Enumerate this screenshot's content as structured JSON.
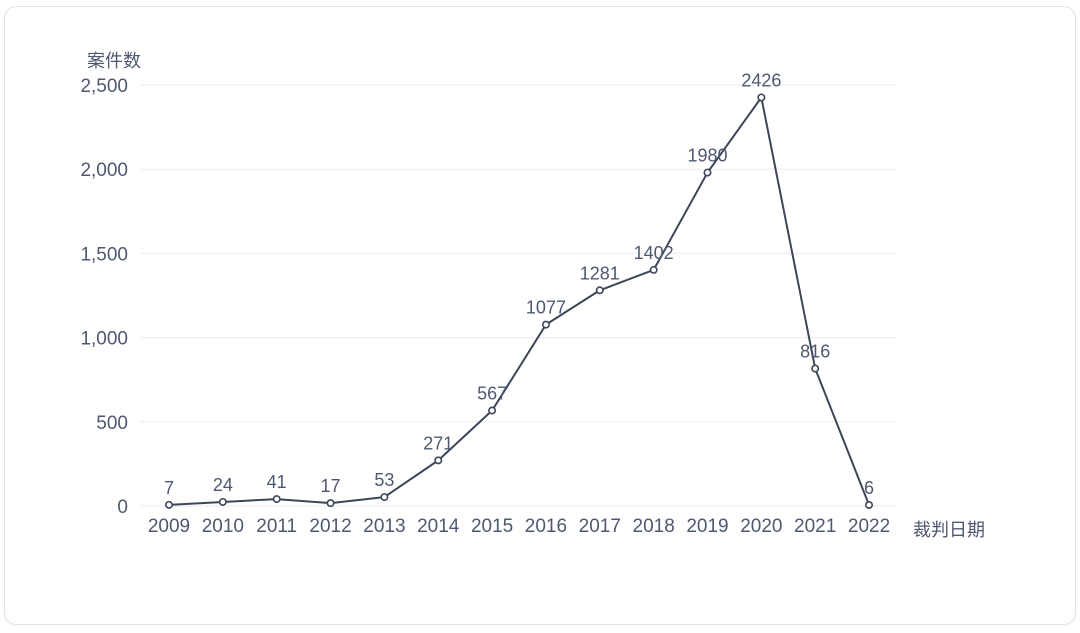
{
  "card": {
    "background": "#ffffff",
    "border_color": "#e2e4ec"
  },
  "chart_data": {
    "type": "line",
    "title": "",
    "ylabel": "案件数",
    "xlabel": "裁判日期",
    "categories": [
      "2009",
      "2010",
      "2011",
      "2012",
      "2013",
      "2014",
      "2015",
      "2016",
      "2017",
      "2018",
      "2019",
      "2020",
      "2021",
      "2022"
    ],
    "values": [
      7,
      24,
      41,
      17,
      53,
      271,
      567,
      1077,
      1281,
      1402,
      1980,
      2426,
      816,
      6
    ],
    "value_labels": [
      "7",
      "24",
      "41",
      "17",
      "53",
      "271",
      "567",
      "1077",
      "1281",
      "1402",
      "1980",
      "2426",
      "816",
      "6"
    ],
    "ylim": [
      0,
      2500
    ],
    "yticks": [
      {
        "value": 0,
        "label": "0"
      },
      {
        "value": 500,
        "label": "500"
      },
      {
        "value": 1000,
        "label": "1,000"
      },
      {
        "value": 1500,
        "label": "1,500"
      },
      {
        "value": 2000,
        "label": "2,000"
      },
      {
        "value": 2500,
        "label": "2,500"
      }
    ],
    "grid": true,
    "legend": "none",
    "line_color": "#3d4659",
    "marker": "open-circle",
    "marker_fill": "#ffffff",
    "label_color": "#4e5870",
    "grid_color": "#e9ebf1"
  }
}
